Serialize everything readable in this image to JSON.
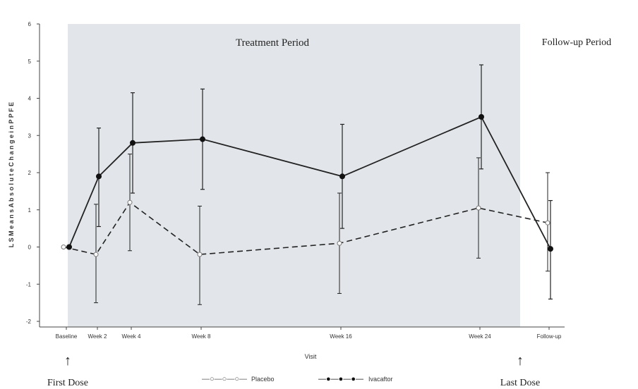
{
  "chart_data": {
    "type": "line",
    "xlabel": "Visit",
    "ylabel": "L S M e a n s   A b s o l u t e   C h a n g e   i n   P P F E",
    "ylim": [
      -2,
      6
    ],
    "yticks": [
      "6",
      "5",
      "4",
      "3",
      "2",
      "1",
      "0",
      "-1",
      "-2"
    ],
    "categories": [
      "Baseline",
      "Week 2",
      "Week 4",
      "Week 8",
      "Week 16",
      "Week 24",
      "Follow-up"
    ],
    "regions": {
      "treatment": "Treatment Period",
      "followup": "Follow-up Period"
    },
    "annotations": {
      "first_dose": "First Dose",
      "last_dose": "Last Dose",
      "arrow": "↑"
    },
    "series": [
      {
        "name": "Placebo",
        "values": [
          0.0,
          -0.2,
          1.2,
          -0.2,
          0.1,
          1.05,
          0.65
        ],
        "lower": [
          0.0,
          -1.5,
          -0.1,
          -1.55,
          -1.25,
          -0.3,
          -0.65
        ],
        "upper": [
          0.0,
          1.15,
          2.5,
          1.1,
          1.45,
          2.4,
          2.0
        ]
      },
      {
        "name": "Ivacaftor",
        "values": [
          0.0,
          1.9,
          2.8,
          2.9,
          1.9,
          3.5,
          -0.05
        ],
        "lower": [
          0.0,
          0.55,
          1.45,
          1.55,
          0.5,
          2.1,
          -1.4
        ],
        "upper": [
          0.0,
          3.2,
          4.15,
          4.25,
          3.3,
          4.9,
          1.25
        ]
      }
    ],
    "legend": {
      "position": "bottom-center",
      "placebo_symbol": "—○—○—○—",
      "ivacaftor_symbol": "—●—●—●—"
    },
    "colors": {
      "shading": "#e2e6ea",
      "lines": "#222222"
    }
  }
}
